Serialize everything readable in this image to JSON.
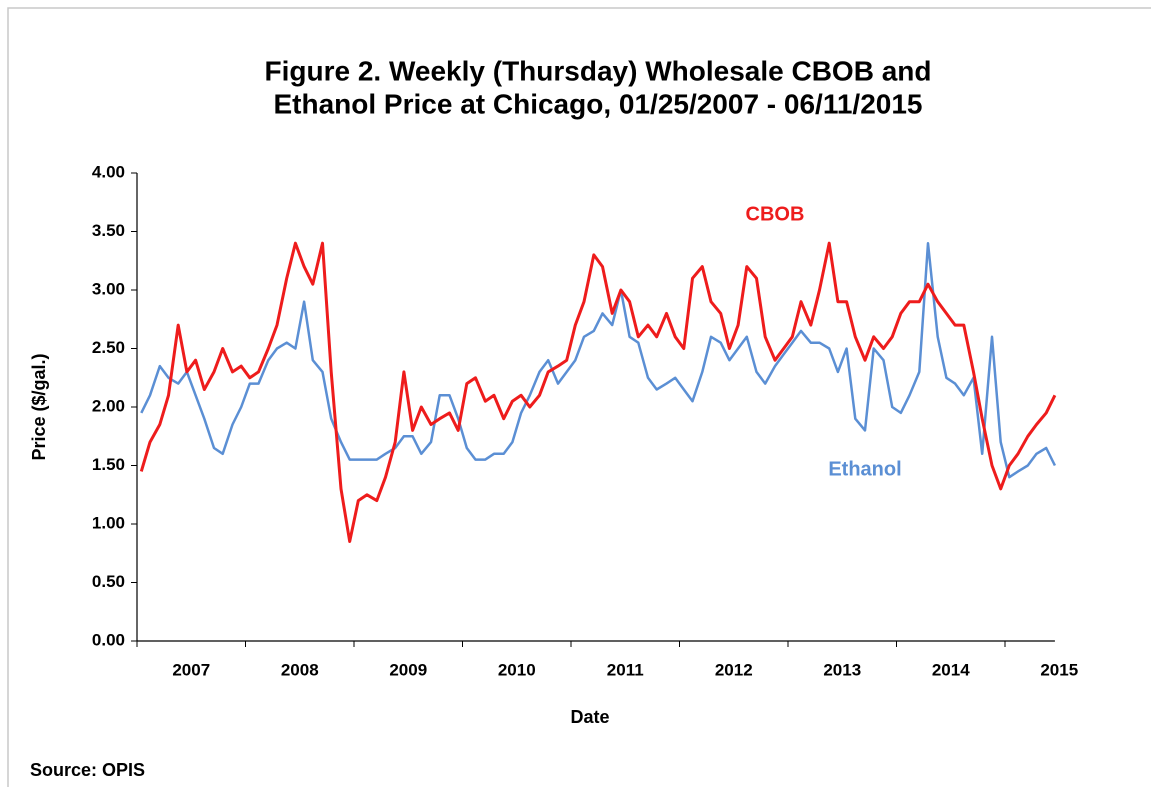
{
  "chart_data": {
    "type": "line",
    "title": [
      "Figure 2. Weekly (Thursday) Wholesale CBOB and",
      "Ethanol Price at Chicago, 01/25/2007 - 06/11/2015"
    ],
    "xlabel": "Date",
    "ylabel": "Price ($/gal.)",
    "source": "Source: OPIS",
    "x": [
      2007.04,
      2007.12,
      2007.21,
      2007.29,
      2007.38,
      2007.46,
      2007.54,
      2007.62,
      2007.71,
      2007.79,
      2007.88,
      2007.96,
      2008.04,
      2008.12,
      2008.21,
      2008.29,
      2008.38,
      2008.46,
      2008.54,
      2008.62,
      2008.71,
      2008.79,
      2008.88,
      2008.96,
      2009.04,
      2009.12,
      2009.21,
      2009.29,
      2009.38,
      2009.46,
      2009.54,
      2009.62,
      2009.71,
      2009.79,
      2009.88,
      2009.96,
      2010.04,
      2010.12,
      2010.21,
      2010.29,
      2010.38,
      2010.46,
      2010.54,
      2010.62,
      2010.71,
      2010.79,
      2010.88,
      2010.96,
      2011.04,
      2011.12,
      2011.21,
      2011.29,
      2011.38,
      2011.46,
      2011.54,
      2011.62,
      2011.71,
      2011.79,
      2011.88,
      2011.96,
      2012.04,
      2012.12,
      2012.21,
      2012.29,
      2012.38,
      2012.46,
      2012.54,
      2012.62,
      2012.71,
      2012.79,
      2012.88,
      2012.96,
      2013.04,
      2013.12,
      2013.21,
      2013.29,
      2013.38,
      2013.46,
      2013.54,
      2013.62,
      2013.71,
      2013.79,
      2013.88,
      2013.96,
      2014.04,
      2014.12,
      2014.21,
      2014.29,
      2014.38,
      2014.46,
      2014.54,
      2014.62,
      2014.71,
      2014.79,
      2014.88,
      2014.96,
      2015.04,
      2015.12,
      2015.21,
      2015.29,
      2015.38,
      2015.46
    ],
    "series": [
      {
        "name": "CBOB",
        "color": "#ee1c1c",
        "values": [
          1.45,
          1.7,
          1.85,
          2.1,
          2.7,
          2.3,
          2.4,
          2.15,
          2.3,
          2.5,
          2.3,
          2.35,
          2.25,
          2.3,
          2.5,
          2.7,
          3.1,
          3.4,
          3.2,
          3.05,
          3.4,
          2.3,
          1.3,
          0.85,
          1.2,
          1.25,
          1.2,
          1.4,
          1.7,
          2.3,
          1.8,
          2.0,
          1.85,
          1.9,
          1.95,
          1.8,
          2.2,
          2.25,
          2.05,
          2.1,
          1.9,
          2.05,
          2.1,
          2.0,
          2.1,
          2.3,
          2.35,
          2.4,
          2.7,
          2.9,
          3.3,
          3.2,
          2.8,
          3.0,
          2.9,
          2.6,
          2.7,
          2.6,
          2.8,
          2.6,
          2.5,
          3.1,
          3.2,
          2.9,
          2.8,
          2.5,
          2.7,
          3.2,
          3.1,
          2.6,
          2.4,
          2.5,
          2.6,
          2.9,
          2.7,
          3.0,
          3.4,
          2.9,
          2.9,
          2.6,
          2.4,
          2.6,
          2.5,
          2.6,
          2.8,
          2.9,
          2.9,
          3.05,
          2.9,
          2.8,
          2.7,
          2.7,
          2.3,
          1.9,
          1.5,
          1.3,
          1.5,
          1.6,
          1.75,
          1.85,
          1.95,
          2.1
        ]
      },
      {
        "name": "Ethanol",
        "color": "#5b8fd4",
        "values": [
          1.95,
          2.1,
          2.35,
          2.25,
          2.2,
          2.3,
          2.1,
          1.9,
          1.65,
          1.6,
          1.85,
          2.0,
          2.2,
          2.2,
          2.4,
          2.5,
          2.55,
          2.5,
          2.9,
          2.4,
          2.3,
          1.9,
          1.7,
          1.55,
          1.55,
          1.55,
          1.55,
          1.6,
          1.65,
          1.75,
          1.75,
          1.6,
          1.7,
          2.1,
          2.1,
          1.9,
          1.65,
          1.55,
          1.55,
          1.6,
          1.6,
          1.7,
          1.95,
          2.1,
          2.3,
          2.4,
          2.2,
          2.3,
          2.4,
          2.6,
          2.65,
          2.8,
          2.7,
          3.0,
          2.6,
          2.55,
          2.25,
          2.15,
          2.2,
          2.25,
          2.15,
          2.05,
          2.3,
          2.6,
          2.55,
          2.4,
          2.5,
          2.6,
          2.3,
          2.2,
          2.35,
          2.45,
          2.55,
          2.65,
          2.55,
          2.55,
          2.5,
          2.3,
          2.5,
          1.9,
          1.8,
          2.5,
          2.4,
          2.0,
          1.95,
          2.1,
          2.3,
          3.4,
          2.6,
          2.25,
          2.2,
          2.1,
          2.25,
          1.6,
          2.6,
          1.7,
          1.4,
          1.45,
          1.5,
          1.6,
          1.65,
          1.5
        ]
      }
    ],
    "xlim": [
      2007,
      2015.46
    ],
    "xticks": [
      2007,
      2008,
      2009,
      2010,
      2011,
      2012,
      2013,
      2014,
      2015
    ],
    "ylim": [
      0,
      4
    ],
    "yticks": [
      {
        "value": 0,
        "label": "0.00"
      },
      {
        "value": 0.5,
        "label": "0.50"
      },
      {
        "value": 1,
        "label": "1.00"
      },
      {
        "value": 1.5,
        "label": "1.50"
      },
      {
        "value": 2,
        "label": "2.00"
      },
      {
        "value": 2.5,
        "label": "2.50"
      },
      {
        "value": 3,
        "label": "3.00"
      },
      {
        "value": 3.5,
        "label": "3.50"
      },
      {
        "value": 4,
        "label": "4.00"
      }
    ],
    "grid": false,
    "legend": "inline"
  }
}
